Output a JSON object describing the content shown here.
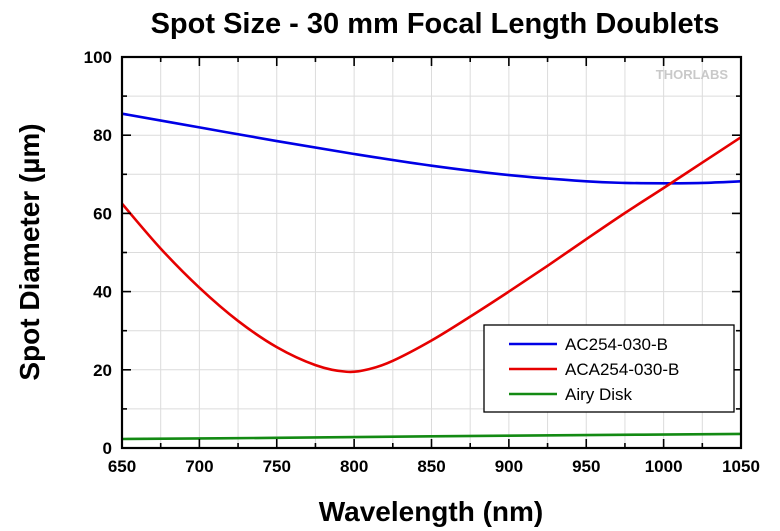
{
  "chart_data": {
    "type": "line",
    "title": "Spot Size - 30 mm Focal Length Doublets",
    "xlabel": "Wavelength (nm)",
    "ylabel": "Spot Diameter (µm)",
    "xlim": [
      650,
      1050
    ],
    "ylim": [
      0,
      100
    ],
    "xticks": [
      650,
      700,
      750,
      800,
      850,
      900,
      950,
      1000,
      1050
    ],
    "yticks": [
      0,
      20,
      40,
      60,
      80,
      100
    ],
    "grid": true,
    "legend_position": "bottom-right",
    "watermark": "THORLABS",
    "series": [
      {
        "name": "AC254-030-B",
        "color": "#0000e6",
        "x": [
          650,
          700,
          750,
          800,
          850,
          900,
          950,
          975,
          1000,
          1025,
          1050
        ],
        "y": [
          85.5,
          82,
          78.5,
          75.2,
          72.2,
          69.8,
          68.2,
          67.8,
          67.7,
          67.8,
          68.2
        ]
      },
      {
        "name": "ACA254-030-B",
        "color": "#e60000",
        "x": [
          650,
          675,
          700,
          725,
          750,
          775,
          795,
          810,
          825,
          850,
          875,
          900,
          925,
          950,
          975,
          1000,
          1025,
          1050
        ],
        "y": [
          62.5,
          51,
          41,
          32.5,
          25.8,
          21.2,
          19.5,
          20.2,
          22.3,
          27.5,
          33.6,
          40,
          46.6,
          53.4,
          60.1,
          66.5,
          73,
          79.5
        ]
      },
      {
        "name": "Airy Disk",
        "color": "#138a13",
        "x": [
          650,
          750,
          850,
          950,
          1050
        ],
        "y": [
          2.3,
          2.6,
          3.0,
          3.3,
          3.6
        ]
      }
    ]
  }
}
